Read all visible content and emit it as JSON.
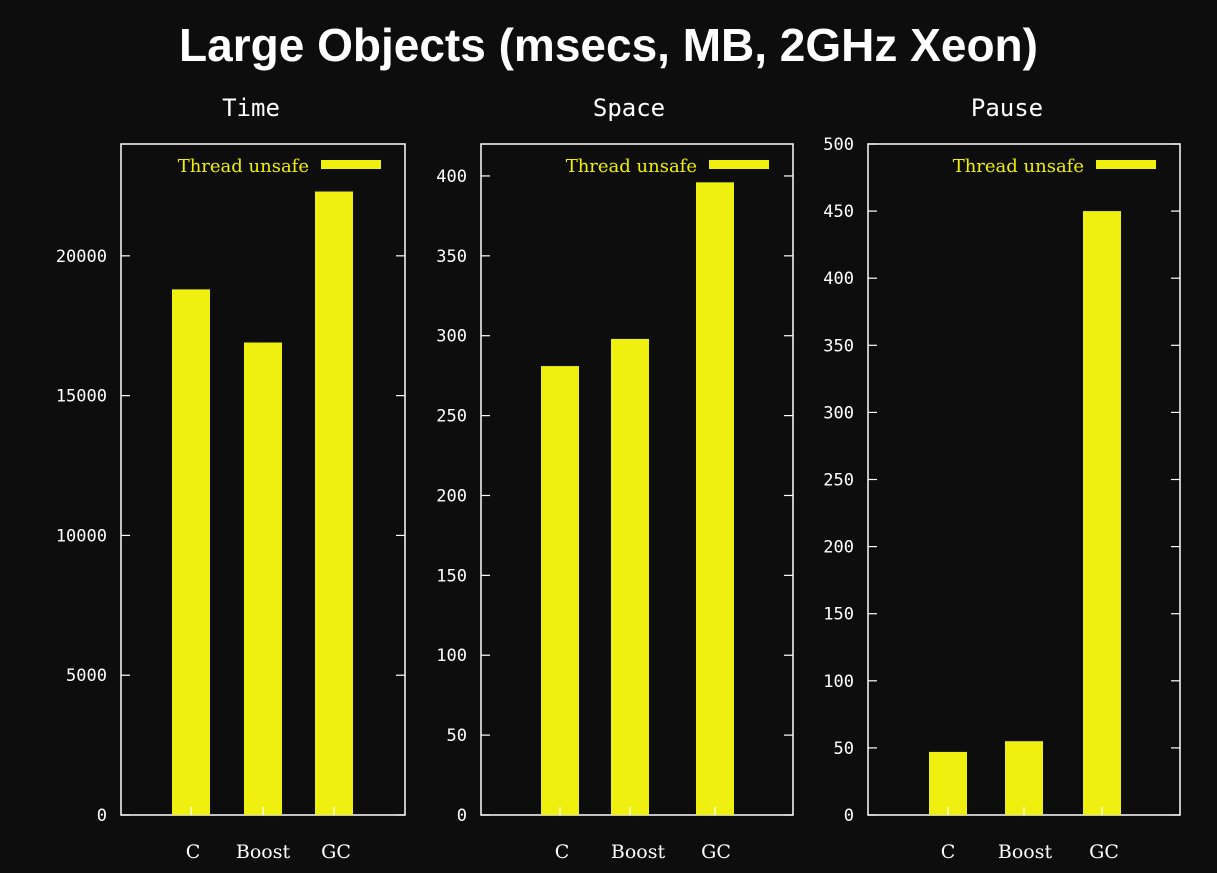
{
  "title": "Large Objects (msecs, MB, 2GHz Xeon)",
  "colors": {
    "background": "#0d0d0d",
    "bar": "#f0f010",
    "axis": "#ffffff"
  },
  "chart_data": [
    {
      "type": "bar",
      "title": "Time",
      "categories": [
        "C",
        "Boost",
        "GC"
      ],
      "series": [
        {
          "name": "Thread unsafe",
          "values": [
            18800,
            16900,
            22300
          ]
        }
      ],
      "ylim": [
        0,
        24000
      ],
      "yticks": [
        0,
        5000,
        10000,
        15000,
        20000
      ],
      "legend": "top-right",
      "grid": false
    },
    {
      "type": "bar",
      "title": "Space",
      "categories": [
        "C",
        "Boost",
        "GC"
      ],
      "series": [
        {
          "name": "Thread unsafe",
          "values": [
            281,
            298,
            396
          ]
        }
      ],
      "ylim": [
        0,
        420
      ],
      "yticks": [
        0,
        50,
        100,
        150,
        200,
        250,
        300,
        350,
        400
      ],
      "legend": "top-right",
      "grid": false
    },
    {
      "type": "bar",
      "title": "Pause",
      "categories": [
        "C",
        "Boost",
        "GC"
      ],
      "series": [
        {
          "name": "Thread unsafe",
          "values": [
            47,
            55,
            450
          ]
        }
      ],
      "ylim": [
        0,
        500
      ],
      "yticks": [
        0,
        50,
        100,
        150,
        200,
        250,
        300,
        350,
        400,
        450,
        500
      ],
      "legend": "top-right",
      "grid": false
    }
  ]
}
